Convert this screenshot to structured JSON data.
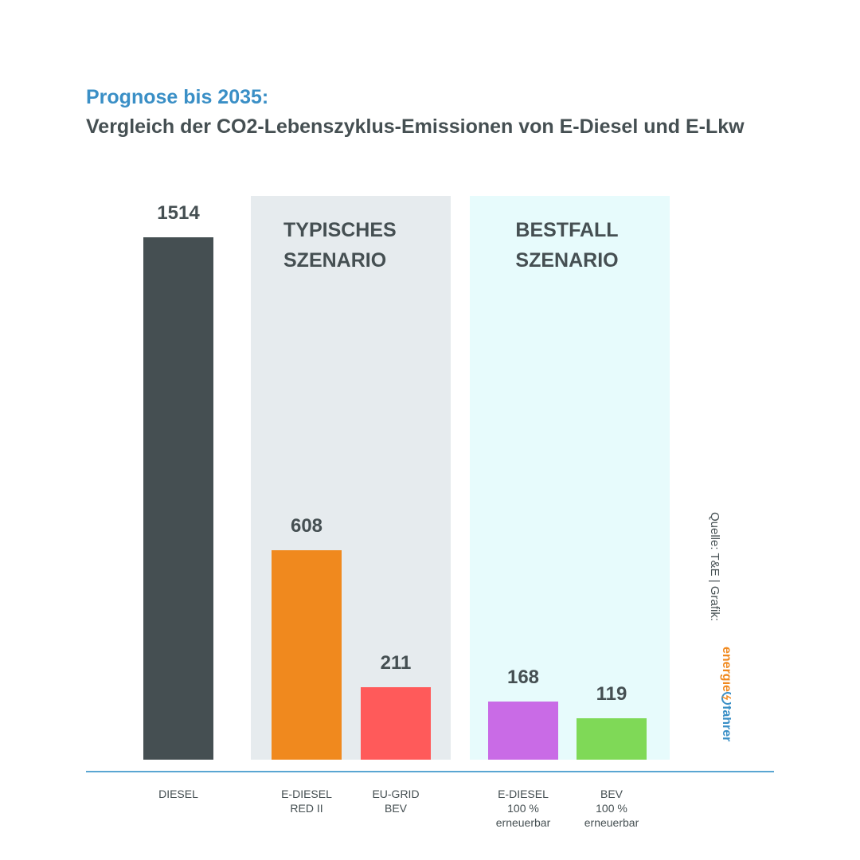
{
  "title": "Prognose bis 2035:",
  "subtitle": "Vergleich der CO2-Lebenszyklus-Emissionen von E-Diesel und E-Lkw",
  "source": "Quelle: T&E | Grafik:",
  "logo": {
    "name": "energie-fahrer-logo",
    "text_part1": "energie",
    "text_part2": "fahrer"
  },
  "colors": {
    "title": "#3a8fc6",
    "text": "#454f52",
    "panel_typisch": "#e6ebee",
    "panel_bestfall": "#e7fbfc",
    "baseline": "#5aa6d2"
  },
  "chart_data": {
    "type": "bar",
    "title": "Prognose bis 2035:",
    "subtitle": "Vergleich der CO2-Lebenszyklus-Emissionen von E-Diesel und E-Lkw",
    "xlabel": "",
    "ylabel": "",
    "ylim": [
      0,
      1514
    ],
    "grid": false,
    "groups": [
      {
        "label": "TYPISCHES\nSZENARIO",
        "categories": [
          "E-DIESEL\nRED II",
          "EU-GRID\nBEV"
        ]
      },
      {
        "label": "BESTFALL\nSZENARIO",
        "categories": [
          "E-DIESEL\n100 %\nerneuerbar",
          "BEV\n100 %\nerneuerbar"
        ]
      }
    ],
    "categories": [
      "DIESEL",
      "E-DIESEL\nRED II",
      "EU-GRID\nBEV",
      "E-DIESEL\n100 %\nerneuerbar",
      "BEV\n100 %\nerneuerbar"
    ],
    "values": [
      1514,
      608,
      211,
      168,
      119
    ],
    "bar_colors": [
      "#454f52",
      "#f0891e",
      "#ff5a5a",
      "#c96be6",
      "#7fd957"
    ]
  }
}
